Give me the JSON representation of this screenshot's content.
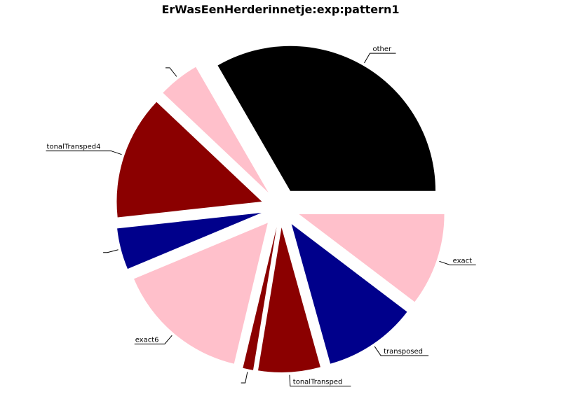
{
  "chart_data": {
    "type": "pie",
    "title": "ErWasEenHerderinnetje:exp:pattern1",
    "start_angle_deg": 0,
    "direction": "counterclockwise",
    "slices": [
      {
        "label": "other",
        "value": 29,
        "color": "#000000"
      },
      {
        "label": "",
        "value": 4,
        "color": "#ffc0cb"
      },
      {
        "label": "tonalTransped4",
        "value": 12,
        "color": "#8b0000"
      },
      {
        "label": "",
        "value": 4,
        "color": "#00008b"
      },
      {
        "label": "exact6",
        "value": 13,
        "color": "#ffc0cb"
      },
      {
        "label": "",
        "value": 1,
        "color": "#8b0000"
      },
      {
        "label": "tonalTransped",
        "value": 6,
        "color": "#8b0000"
      },
      {
        "label": "transposed",
        "value": 9,
        "color": "#00008b"
      },
      {
        "label": "exact",
        "value": 9,
        "color": "#ffc0cb"
      }
    ]
  }
}
